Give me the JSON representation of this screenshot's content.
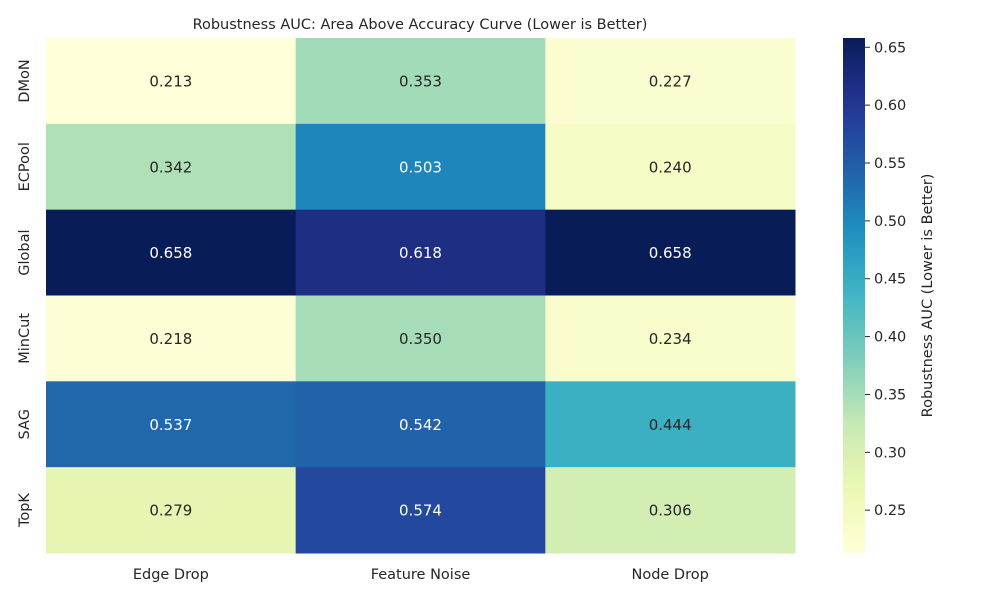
{
  "chart_data": {
    "type": "heatmap",
    "title": "Robustness AUC: Area Above Accuracy Curve (Lower is Better)",
    "xlabel": "",
    "ylabel": "",
    "x_categories": [
      "Edge Drop",
      "Feature Noise",
      "Node Drop"
    ],
    "y_categories": [
      "DMoN",
      "ECPool",
      "Global",
      "MinCut",
      "SAG",
      "TopK"
    ],
    "values": [
      [
        0.213,
        0.353,
        0.227
      ],
      [
        0.342,
        0.503,
        0.24
      ],
      [
        0.658,
        0.618,
        0.658
      ],
      [
        0.218,
        0.35,
        0.234
      ],
      [
        0.537,
        0.542,
        0.444
      ],
      [
        0.279,
        0.574,
        0.306
      ]
    ],
    "value_labels": [
      [
        "0.213",
        "0.353",
        "0.227"
      ],
      [
        "0.342",
        "0.503",
        "0.240"
      ],
      [
        "0.658",
        "0.618",
        "0.658"
      ],
      [
        "0.218",
        "0.350",
        "0.234"
      ],
      [
        "0.537",
        "0.542",
        "0.444"
      ],
      [
        "0.279",
        "0.574",
        "0.306"
      ]
    ],
    "colormap": "YlGnBu",
    "vmin": 0.213,
    "vmax": 0.658,
    "colorbar": {
      "label": "Robustness AUC (Lower is Better)",
      "ticks": [
        0.25,
        0.3,
        0.35,
        0.4,
        0.45,
        0.5,
        0.55,
        0.6,
        0.65
      ],
      "tick_labels": [
        "0.25",
        "0.30",
        "0.35",
        "0.40",
        "0.45",
        "0.50",
        "0.55",
        "0.60",
        "0.65"
      ]
    }
  }
}
